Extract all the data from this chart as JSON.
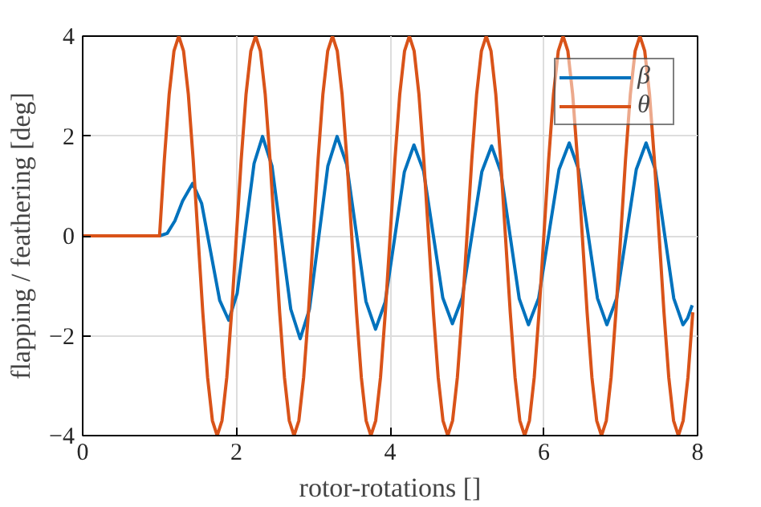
{
  "chart_data": {
    "type": "line",
    "xlabel": "rotor-rotations []",
    "ylabel": "flapping / feathering [deg]",
    "xlim": [
      0,
      8
    ],
    "ylim": [
      -4,
      4
    ],
    "xticks": [
      0,
      2,
      4,
      6,
      8
    ],
    "yticks": [
      -4,
      -2,
      0,
      2,
      4
    ],
    "grid": true,
    "legend": "top right",
    "line_style": "solid",
    "series": [
      {
        "name": "β",
        "color": "#0072bd",
        "x": [
          0,
          1,
          1.1,
          1.2,
          1.3,
          1.43,
          1.5475,
          1.665,
          1.7825,
          1.9,
          2.01,
          2.12,
          2.23,
          2.34,
          2.4625,
          2.585,
          2.7075,
          2.83,
          2.95,
          3.07,
          3.19,
          3.31,
          3.435,
          3.56,
          3.685,
          3.81,
          3.935,
          4.06,
          4.185,
          4.31,
          4.435,
          4.56,
          4.685,
          4.81,
          4.9375,
          5.065,
          5.1925,
          5.32,
          5.44,
          5.56,
          5.68,
          5.8,
          5.9325,
          6.065,
          6.1975,
          6.33,
          6.4525,
          6.575,
          6.6975,
          6.82,
          6.9475,
          7.075,
          7.2025,
          7.33,
          7.45,
          7.57,
          7.69,
          7.81,
          7.87,
          7.93
        ],
        "values": [
          0,
          0,
          0.05,
          0.3,
          0.7,
          1.05,
          0.65,
          -0.32,
          -1.29,
          -1.69,
          -1.15,
          0.15,
          1.45,
          1.99,
          1.4,
          -0.04,
          -1.47,
          -2.06,
          -1.47,
          -0.04,
          1.4,
          1.99,
          1.43,
          0.06,
          -1.31,
          -1.87,
          -1.33,
          -0.03,
          1.28,
          1.82,
          1.3,
          0.03,
          -1.24,
          -1.76,
          -1.24,
          0.02,
          1.28,
          1.8,
          1.28,
          0.01,
          -1.26,
          -1.78,
          -1.25,
          0.04,
          1.33,
          1.86,
          1.33,
          0.04,
          -1.25,
          -1.78,
          -1.25,
          0.04,
          1.33,
          1.86,
          1.33,
          0.04,
          -1.25,
          -1.78,
          -1.65,
          -1.39
        ]
      },
      {
        "name": "θ",
        "color": "#d95319",
        "x": [
          0,
          1,
          1.0625,
          1.125,
          1.1875,
          1.25,
          1.3125,
          1.375,
          1.4375,
          1.5,
          1.5625,
          1.625,
          1.6875,
          1.75,
          1.8125,
          1.875,
          1.9375,
          2,
          2.0625,
          2.125,
          2.1875,
          2.25,
          2.3125,
          2.375,
          2.4375,
          2.5,
          2.5625,
          2.625,
          2.6875,
          2.75,
          2.8125,
          2.875,
          2.9375,
          3,
          3.0625,
          3.125,
          3.1875,
          3.25,
          3.3125,
          3.375,
          3.4375,
          3.5,
          3.5625,
          3.625,
          3.6875,
          3.75,
          3.8125,
          3.875,
          3.9375,
          4,
          4.0625,
          4.125,
          4.1875,
          4.25,
          4.3125,
          4.375,
          4.4375,
          4.5,
          4.5625,
          4.625,
          4.6875,
          4.75,
          4.8125,
          4.875,
          4.9375,
          5,
          5.0625,
          5.125,
          5.1875,
          5.25,
          5.3125,
          5.375,
          5.4375,
          5.5,
          5.5625,
          5.625,
          5.6875,
          5.75,
          5.8125,
          5.875,
          5.9375,
          6,
          6.0625,
          6.125,
          6.1875,
          6.25,
          6.3125,
          6.375,
          6.4375,
          6.5,
          6.5625,
          6.625,
          6.6875,
          6.75,
          6.8125,
          6.875,
          6.9375,
          7,
          7.0625,
          7.125,
          7.1875,
          7.25,
          7.3125,
          7.375,
          7.4375,
          7.5,
          7.5625,
          7.625,
          7.6875,
          7.75,
          7.8125,
          7.875,
          7.9375
        ],
        "values": [
          0,
          0,
          1.53,
          2.83,
          3.7,
          4,
          3.7,
          2.83,
          1.53,
          0,
          -1.53,
          -2.83,
          -3.7,
          -4,
          -3.7,
          -2.83,
          -1.53,
          0,
          1.53,
          2.83,
          3.7,
          4,
          3.7,
          2.83,
          1.53,
          0,
          -1.53,
          -2.83,
          -3.7,
          -4,
          -3.7,
          -2.83,
          -1.53,
          0,
          1.53,
          2.83,
          3.7,
          4,
          3.7,
          2.83,
          1.53,
          0,
          -1.53,
          -2.83,
          -3.7,
          -4,
          -3.7,
          -2.83,
          -1.53,
          0,
          1.53,
          2.83,
          3.7,
          4,
          3.7,
          2.83,
          1.53,
          0,
          -1.53,
          -2.83,
          -3.7,
          -4,
          -3.7,
          -2.83,
          -1.53,
          0,
          1.53,
          2.83,
          3.7,
          4,
          3.7,
          2.83,
          1.53,
          0,
          -1.53,
          -2.83,
          -3.7,
          -4,
          -3.7,
          -2.83,
          -1.53,
          0,
          1.53,
          2.83,
          3.7,
          4,
          3.7,
          2.83,
          1.53,
          0,
          -1.53,
          -2.83,
          -3.7,
          -4,
          -3.7,
          -2.83,
          -1.53,
          0,
          1.53,
          2.83,
          3.7,
          4,
          3.7,
          2.83,
          1.53,
          0,
          -1.53,
          -2.83,
          -3.7,
          -4,
          -3.7,
          -2.83,
          -1.53
        ]
      }
    ]
  }
}
